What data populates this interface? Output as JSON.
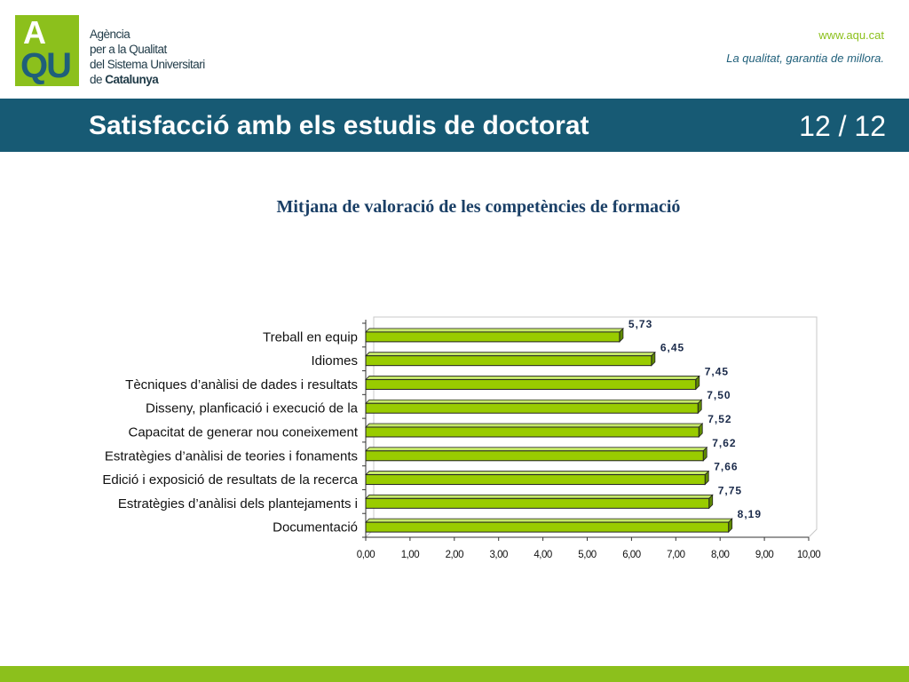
{
  "header": {
    "logo_top": "A",
    "logo_bottom": "QU",
    "org_line1": "Agència",
    "org_line2": "per a la Qualitat",
    "org_line3": "del Sistema Universitari",
    "org_line4_prefix": "de ",
    "org_line4_bold": "Catalunya",
    "url": "www.aqu.cat",
    "tagline": "La qualitat, garantia de millora."
  },
  "slide": {
    "title": "Satisfacció amb els estudis de doctorat",
    "page": "12 / 12"
  },
  "colors": {
    "brand_green": "#8cc01c",
    "brand_blue": "#175a74",
    "bar_fill": "#99cc00",
    "bar_dark": "#5f8a00"
  },
  "chart_data": {
    "type": "bar",
    "orientation": "horizontal",
    "title": "Mitjana de valoració de les competències de formació",
    "categories": [
      "Treball en equip",
      "Idiomes",
      "Tècniques d’anàlisi de dades i resultats",
      "Disseny, planficació i execució de la",
      "Capacitat de generar nou coneixement",
      "Estratègies d’anàlisi de teories i fonaments",
      "Edició i exposició de resultats de la recerca",
      "Estratègies d’anàlisi dels plantejaments i",
      "Documentació"
    ],
    "values": [
      5.73,
      6.45,
      7.45,
      7.5,
      7.52,
      7.62,
      7.66,
      7.75,
      8.19
    ],
    "value_labels": [
      "5,73",
      "6,45",
      "7,45",
      "7,50",
      "7,52",
      "7,62",
      "7,66",
      "7,75",
      "8,19"
    ],
    "xlim": [
      0,
      10
    ],
    "x_ticks": [
      "0,00",
      "1,00",
      "2,00",
      "3,00",
      "4,00",
      "5,00",
      "6,00",
      "7,00",
      "8,00",
      "9,00",
      "10,00"
    ],
    "xlabel": "",
    "ylabel": "",
    "grid": false,
    "legend": "none"
  }
}
